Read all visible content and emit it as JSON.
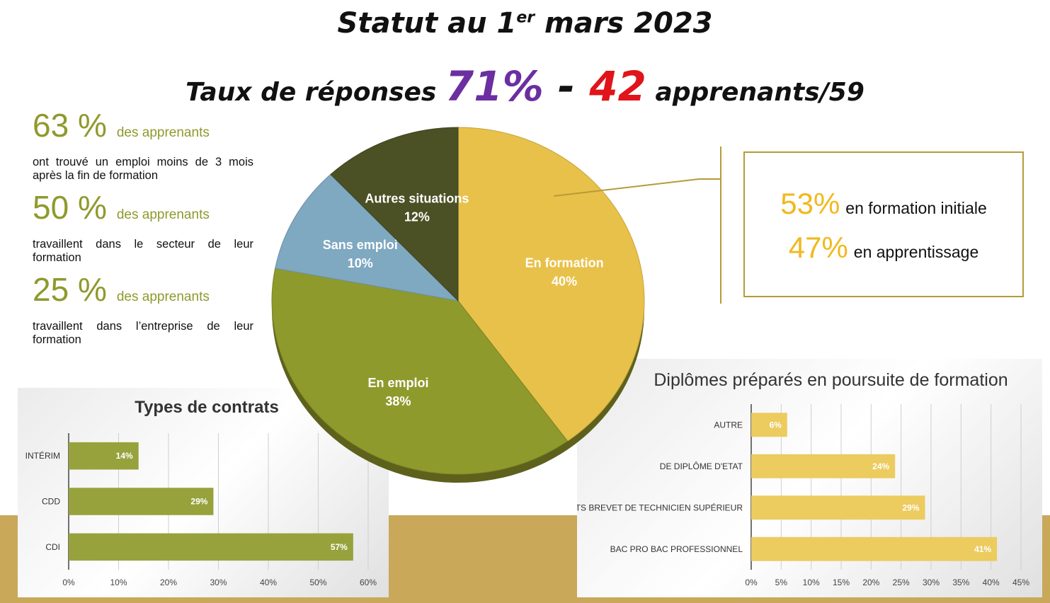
{
  "header": {
    "title_prefix": "Statut au 1",
    "title_sup": "er",
    "title_suffix": " mars 2023",
    "line2_prefix": "Taux de réponses ",
    "rate": "71%",
    "separator": " - ",
    "count": "42",
    "line2_suffix": " apprenants/59"
  },
  "stats": [
    {
      "value": "63 %",
      "label": "des apprenants",
      "text": "ont trouvé un emploi moins de 3 mois après la fin de formation"
    },
    {
      "value": "50 %",
      "label": "des apprenants",
      "text": "travaillent dans le secteur de leur formation"
    },
    {
      "value": "25 %",
      "label": "des apprenants",
      "text": "travaillent dans l’entreprise de leur formation"
    }
  ],
  "info_box": {
    "line1_value": "53%",
    "line1_text": "en formation initiale",
    "line2_value": "47%",
    "line2_text": "en apprentissage"
  },
  "colors": {
    "olive": "#8f9a2c",
    "yellow": "#e8c14a",
    "light_blue": "#7fa8c1",
    "dark_olive": "#4b5124",
    "gold_accent": "#f2b81e",
    "band": "#c9a85a"
  },
  "chart_data": [
    {
      "type": "pie",
      "title": "",
      "slices": [
        {
          "label": "En formation",
          "value": 40,
          "value_label": "40%",
          "color": "#e8c14a"
        },
        {
          "label": "En emploi",
          "value": 38,
          "value_label": "38%",
          "color": "#8f9a2c"
        },
        {
          "label": "Sans emploi",
          "value": 10,
          "value_label": "10%",
          "color": "#7fa8c1"
        },
        {
          "label": "Autres situations",
          "value": 12,
          "value_label": "12%",
          "color": "#4b5124"
        }
      ]
    },
    {
      "type": "bar",
      "orientation": "horizontal",
      "title": "Types de contrats",
      "categories": [
        "INTÉRIM",
        "CDD",
        "CDI"
      ],
      "values": [
        14,
        29,
        57
      ],
      "value_labels": [
        "14%",
        "29%",
        "57%"
      ],
      "xlim": [
        0,
        60
      ],
      "ticks": [
        "0%",
        "10%",
        "20%",
        "30%",
        "40%",
        "50%",
        "60%"
      ],
      "grid": true,
      "color": "#97a23c"
    },
    {
      "type": "bar",
      "orientation": "horizontal",
      "title": "Diplômes préparés en poursuite de formation",
      "categories": [
        "AUTRE",
        "DE DIPLÔME D'ETAT",
        "BTS BREVET DE TECHNICIEN SUPÉRIEUR",
        "BAC PRO BAC PROFESSIONNEL"
      ],
      "values": [
        6,
        24,
        29,
        41
      ],
      "value_labels": [
        "6%",
        "24%",
        "29%",
        "41%"
      ],
      "xlim": [
        0,
        45
      ],
      "ticks": [
        "0%",
        "5%",
        "10%",
        "15%",
        "20%",
        "25%",
        "30%",
        "35%",
        "40%",
        "45%"
      ],
      "grid": true,
      "color": "#eccb5f"
    }
  ]
}
